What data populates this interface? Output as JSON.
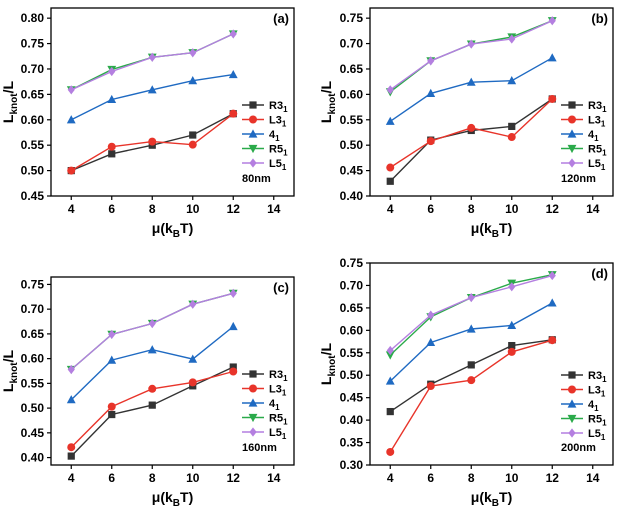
{
  "figure": {
    "x_axis_title": "μ(k",
    "x_axis_title_sub": "B",
    "x_axis_title_end": "T)",
    "y_axis_title": "L",
    "y_axis_title_sub": "knot",
    "y_axis_title_end": "/L"
  },
  "chart_data": [
    {
      "type": "line",
      "panel_label": "(a)",
      "note": "80nm",
      "x": [
        4,
        6,
        8,
        10,
        12
      ],
      "xlim": [
        3,
        15
      ],
      "xticks": [
        4,
        6,
        8,
        10,
        12,
        14
      ],
      "ylim": [
        0.45,
        0.82
      ],
      "yticks": [
        "0.45",
        "0.50",
        "0.55",
        "0.60",
        "0.65",
        "0.70",
        "0.75",
        "0.80"
      ],
      "legend_position": "center-right",
      "series": [
        {
          "name": "R3",
          "sub": "1",
          "color": "#333333",
          "marker": "square",
          "values": [
            0.5,
            0.533,
            0.55,
            0.57,
            0.612
          ]
        },
        {
          "name": "L3",
          "sub": "1",
          "color": "#e8342a",
          "marker": "circle",
          "values": [
            0.5,
            0.547,
            0.557,
            0.551,
            0.612
          ]
        },
        {
          "name": "4",
          "sub": "1",
          "color": "#1f6ac2",
          "marker": "triangle",
          "values": [
            0.6,
            0.64,
            0.659,
            0.677,
            0.689
          ]
        },
        {
          "name": "R5",
          "sub": "1",
          "color": "#2aaa4a",
          "marker": "triangle-down",
          "values": [
            0.659,
            0.699,
            0.723,
            0.732,
            0.769
          ]
        },
        {
          "name": "L5",
          "sub": "1",
          "color": "#b47fe0",
          "marker": "diamond",
          "values": [
            0.659,
            0.695,
            0.723,
            0.732,
            0.769
          ]
        }
      ]
    },
    {
      "type": "line",
      "panel_label": "(b)",
      "note": "120nm",
      "x": [
        4,
        6,
        8,
        10,
        12
      ],
      "xlim": [
        3,
        15
      ],
      "xticks": [
        4,
        6,
        8,
        10,
        12,
        14
      ],
      "ylim": [
        0.4,
        0.77
      ],
      "yticks": [
        "0.40",
        "0.45",
        "0.50",
        "0.55",
        "0.60",
        "0.65",
        "0.70",
        "0.75"
      ],
      "legend_position": "center-right",
      "series": [
        {
          "name": "R3",
          "sub": "1",
          "color": "#333333",
          "marker": "square",
          "values": [
            0.429,
            0.51,
            0.529,
            0.537,
            0.591
          ]
        },
        {
          "name": "L3",
          "sub": "1",
          "color": "#e8342a",
          "marker": "circle",
          "values": [
            0.456,
            0.508,
            0.534,
            0.516,
            0.591
          ]
        },
        {
          "name": "4",
          "sub": "1",
          "color": "#1f6ac2",
          "marker": "triangle",
          "values": [
            0.547,
            0.602,
            0.624,
            0.627,
            0.672
          ]
        },
        {
          "name": "R5",
          "sub": "1",
          "color": "#2aaa4a",
          "marker": "triangle-down",
          "values": [
            0.605,
            0.666,
            0.699,
            0.713,
            0.745
          ]
        },
        {
          "name": "L5",
          "sub": "1",
          "color": "#b47fe0",
          "marker": "diamond",
          "values": [
            0.609,
            0.666,
            0.699,
            0.709,
            0.745
          ]
        }
      ]
    },
    {
      "type": "line",
      "panel_label": "(c)",
      "note": "160nm",
      "x": [
        4,
        6,
        8,
        10,
        12
      ],
      "xlim": [
        3,
        15
      ],
      "xticks": [
        4,
        6,
        8,
        10,
        12,
        14
      ],
      "ylim": [
        0.385,
        0.765
      ],
      "yticks": [
        "0.40",
        "0.45",
        "0.50",
        "0.55",
        "0.60",
        "0.65",
        "0.70",
        "0.75"
      ],
      "legend_position": "bottom-right",
      "series": [
        {
          "name": "R3",
          "sub": "1",
          "color": "#333333",
          "marker": "square",
          "values": [
            0.403,
            0.487,
            0.506,
            0.545,
            0.583
          ]
        },
        {
          "name": "L3",
          "sub": "1",
          "color": "#e8342a",
          "marker": "circle",
          "values": [
            0.421,
            0.503,
            0.539,
            0.552,
            0.574
          ]
        },
        {
          "name": "4",
          "sub": "1",
          "color": "#1f6ac2",
          "marker": "triangle",
          "values": [
            0.517,
            0.597,
            0.618,
            0.599,
            0.665
          ]
        },
        {
          "name": "R5",
          "sub": "1",
          "color": "#2aaa4a",
          "marker": "triangle-down",
          "values": [
            0.578,
            0.649,
            0.671,
            0.71,
            0.732
          ]
        },
        {
          "name": "L5",
          "sub": "1",
          "color": "#b47fe0",
          "marker": "diamond",
          "values": [
            0.578,
            0.649,
            0.671,
            0.71,
            0.732
          ]
        }
      ]
    },
    {
      "type": "line",
      "panel_label": "(d)",
      "note": "200nm",
      "x": [
        4,
        6,
        8,
        10,
        12
      ],
      "xlim": [
        3,
        15
      ],
      "xticks": [
        4,
        6,
        8,
        10,
        12,
        14
      ],
      "ylim": [
        0.3,
        0.75
      ],
      "yticks": [
        "0.30",
        "0.35",
        "0.40",
        "0.45",
        "0.50",
        "0.55",
        "0.60",
        "0.65",
        "0.70",
        "0.75"
      ],
      "legend_position": "bottom-right",
      "series": [
        {
          "name": "R3",
          "sub": "1",
          "color": "#333333",
          "marker": "square",
          "values": [
            0.419,
            0.48,
            0.523,
            0.566,
            0.579
          ]
        },
        {
          "name": "L3",
          "sub": "1",
          "color": "#e8342a",
          "marker": "circle",
          "values": [
            0.329,
            0.476,
            0.489,
            0.552,
            0.578
          ]
        },
        {
          "name": "4",
          "sub": "1",
          "color": "#1f6ac2",
          "marker": "triangle",
          "values": [
            0.487,
            0.573,
            0.603,
            0.611,
            0.661
          ]
        },
        {
          "name": "R5",
          "sub": "1",
          "color": "#2aaa4a",
          "marker": "triangle-down",
          "values": [
            0.545,
            0.63,
            0.673,
            0.705,
            0.724
          ]
        },
        {
          "name": "L5",
          "sub": "1",
          "color": "#b47fe0",
          "marker": "diamond",
          "values": [
            0.555,
            0.634,
            0.673,
            0.697,
            0.722
          ]
        }
      ]
    }
  ]
}
